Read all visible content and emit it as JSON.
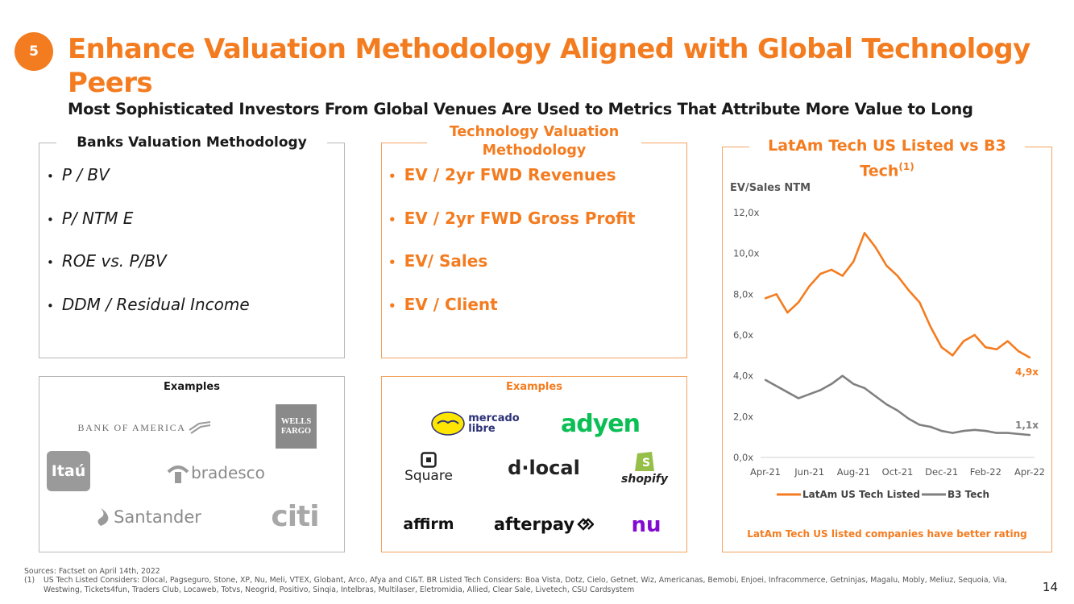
{
  "header": {
    "badge": "5",
    "title": "Enhance Valuation Methodology Aligned with Global Technology Peers",
    "subtitle": "Most Sophisticated Investors From Global Venues Are Used to Metrics That Attribute More Value to Long"
  },
  "banks": {
    "heading": "Banks Valuation Methodology",
    "items": [
      "P / BV",
      "P/ NTM E",
      "ROE vs. P/BV",
      "DDM / Residual Income"
    ],
    "examples_label": "Examples",
    "logos": [
      "BANK OF AMERICA",
      "WELLS",
      "FARGO",
      "Itaú",
      "bradesco",
      "Santander",
      "citi"
    ]
  },
  "tech": {
    "heading_line1": "Technology Valuation",
    "heading_line2": "Methodology",
    "items": [
      "EV / 2yr FWD Revenues",
      "EV / 2yr FWD Gross Profit",
      "EV/ Sales",
      "EV / Client"
    ],
    "examples_label": "Examples",
    "logos": [
      "mercado",
      "libre",
      "adyen",
      "Square",
      "d·local",
      "shopify",
      "affirm",
      "afterpay",
      "nu"
    ]
  },
  "chart_panel": {
    "heading_line1": "LatAm Tech US Listed vs B3",
    "heading_line2": "Tech",
    "heading_sup": "(1)",
    "footer": "LatAm Tech US listed companies have better rating"
  },
  "colors": {
    "accent": "#F47C20",
    "gray_series": "#808080"
  },
  "chart_data": {
    "type": "line",
    "ylabel": "EV/Sales NTM",
    "ylim": [
      0,
      12
    ],
    "y_ticks": [
      "0,0x",
      "2,0x",
      "4,0x",
      "6,0x",
      "8,0x",
      "10,0x",
      "12,0x"
    ],
    "x_ticks": [
      "Apr-21",
      "Jun-21",
      "Aug-21",
      "Oct-21",
      "Dec-21",
      "Feb-22",
      "Apr-22"
    ],
    "x": [
      "Apr-21",
      "Apr-21",
      "May-21",
      "May-21",
      "Jun-21",
      "Jun-21",
      "Jul-21",
      "Jul-21",
      "Aug-21",
      "Aug-21",
      "Sep-21",
      "Sep-21",
      "Oct-21",
      "Oct-21",
      "Nov-21",
      "Nov-21",
      "Dec-21",
      "Dec-21",
      "Jan-22",
      "Jan-22",
      "Feb-22",
      "Feb-22",
      "Mar-22",
      "Mar-22",
      "Apr-22"
    ],
    "series": [
      {
        "name": "LatAm US Tech Listed",
        "color": "#F47C20",
        "values": [
          7.8,
          8.0,
          7.1,
          7.6,
          8.4,
          9.0,
          9.2,
          8.9,
          9.6,
          11.0,
          10.3,
          9.4,
          8.9,
          8.2,
          7.6,
          6.4,
          5.4,
          5.0,
          5.7,
          6.0,
          5.4,
          5.3,
          5.7,
          5.2,
          4.9
        ],
        "end_label": "4,9x"
      },
      {
        "name": "B3 Tech",
        "color": "#808080",
        "values": [
          3.8,
          3.5,
          3.2,
          2.9,
          3.1,
          3.3,
          3.6,
          4.0,
          3.6,
          3.4,
          3.0,
          2.6,
          2.3,
          1.9,
          1.6,
          1.5,
          1.3,
          1.2,
          1.3,
          1.35,
          1.3,
          1.2,
          1.2,
          1.15,
          1.1
        ],
        "end_label": "1,1x"
      }
    ],
    "legend": "bottom"
  },
  "footnotes": {
    "sources": "Sources: Factset on April 14th, 2022",
    "note_marker": "(1)",
    "note_line1": "US Tech Listed Considers: Dlocal, Pagseguro, Stone, XP, Nu, Meli, VTEX, Globant, Arco, Afya and CI&T. BR Listed Tech Considers: Boa Vista, Dotz, Cielo, Getnet, Wiz, Americanas, Bemobi, Enjoei, Infracommerce, Getninjas, Magalu, Mobly, Meliuz, Sequoia, Via,",
    "note_line2": "Westwing, Tickets4fun, Traders Club, Locaweb, Totvs, Neogrid, Positivo, Sinqia, Intelbras, Multilaser, Eletromidia, Allied, Clear Sale, Livetech, CSU Cardsystem"
  },
  "page_number": "14"
}
